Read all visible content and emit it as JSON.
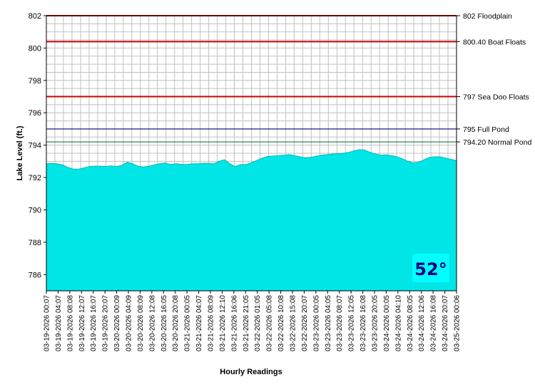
{
  "chart_data": {
    "type": "area",
    "xlabel": "Hourly Readings",
    "ylabel": "Lake Level (ft.)",
    "ylim": [
      785,
      802
    ],
    "yticks": [
      786,
      788,
      790,
      792,
      794,
      796,
      798,
      800,
      802
    ],
    "grid": true,
    "x_tick_labels": [
      "03-19-2026 00:07",
      "03-19-2026 04:07",
      "03-19-2026 08:08",
      "03-19-2026 12:07",
      "03-19-2026 16:07",
      "03-19-2026 20:07",
      "03-20-2026 00:09",
      "03-20-2026 04:09",
      "03-20-2026 08:09",
      "03-20-2026 12:08",
      "03-20-2026 16:05",
      "03-20-2026 20:08",
      "03-21-2026 00:05",
      "03-21-2026 04:07",
      "03-21-2026 08:09",
      "03-21-2026 12:10",
      "03-21-2026 16:06",
      "03-21-2026 21:05",
      "03-22-2026 01:05",
      "03-22-2026 05:08",
      "03-22-2026 10:08",
      "03-22-2026 15:08",
      "03-22-2026 20:07",
      "03-23-2026 00:05",
      "03-23-2026 04:05",
      "03-23-2026 08:07",
      "03-23-2026 12:05",
      "03-23-2026 16:08",
      "03-23-2026 20:05",
      "03-24-2026 00:05",
      "03-24-2026 04:10",
      "03-24-2026 08:05",
      "03-24-2026 12:06",
      "03-24-2026 16:08",
      "03-24-2026 20:07",
      "03-25-2026 00:06"
    ],
    "series": [
      {
        "color": "#00e5e5",
        "values": [
          792.85,
          792.88,
          792.85,
          792.78,
          792.62,
          792.52,
          792.52,
          792.6,
          792.68,
          792.7,
          792.7,
          792.68,
          792.72,
          792.68,
          792.75,
          792.95,
          792.85,
          792.7,
          792.65,
          792.7,
          792.78,
          792.85,
          792.9,
          792.8,
          792.85,
          792.82,
          792.8,
          792.85,
          792.85,
          792.88,
          792.88,
          792.85,
          793.0,
          793.1,
          792.85,
          792.68,
          792.8,
          792.8,
          792.92,
          793.05,
          793.2,
          793.3,
          793.33,
          793.35,
          793.38,
          793.42,
          793.35,
          793.28,
          793.22,
          793.25,
          793.32,
          793.38,
          793.42,
          793.45,
          793.48,
          793.5,
          793.55,
          793.65,
          793.72,
          793.7,
          793.55,
          793.45,
          793.38,
          793.4,
          793.35,
          793.28,
          793.15,
          793.0,
          792.9,
          792.95,
          793.1,
          793.25,
          793.28,
          793.28,
          793.2,
          793.12,
          793.05
        ]
      }
    ],
    "reference_lines": [
      {
        "value": 802,
        "label": "802 Floodplain",
        "color": "#cc0000"
      },
      {
        "value": 800.4,
        "label": "800.40 Boat Floats",
        "color": "#cc0000"
      },
      {
        "value": 797,
        "label": "797 Sea Doo Floats",
        "color": "#cc0000"
      },
      {
        "value": 795,
        "label": "795 Full Pond",
        "color": "#000080"
      },
      {
        "value": 794.2,
        "label": "794.20 Normal Pond",
        "color": "#2e8b57"
      }
    ]
  },
  "temperature_badge": {
    "text": "52°",
    "text_color": "#000080",
    "background": "#00ffff"
  }
}
